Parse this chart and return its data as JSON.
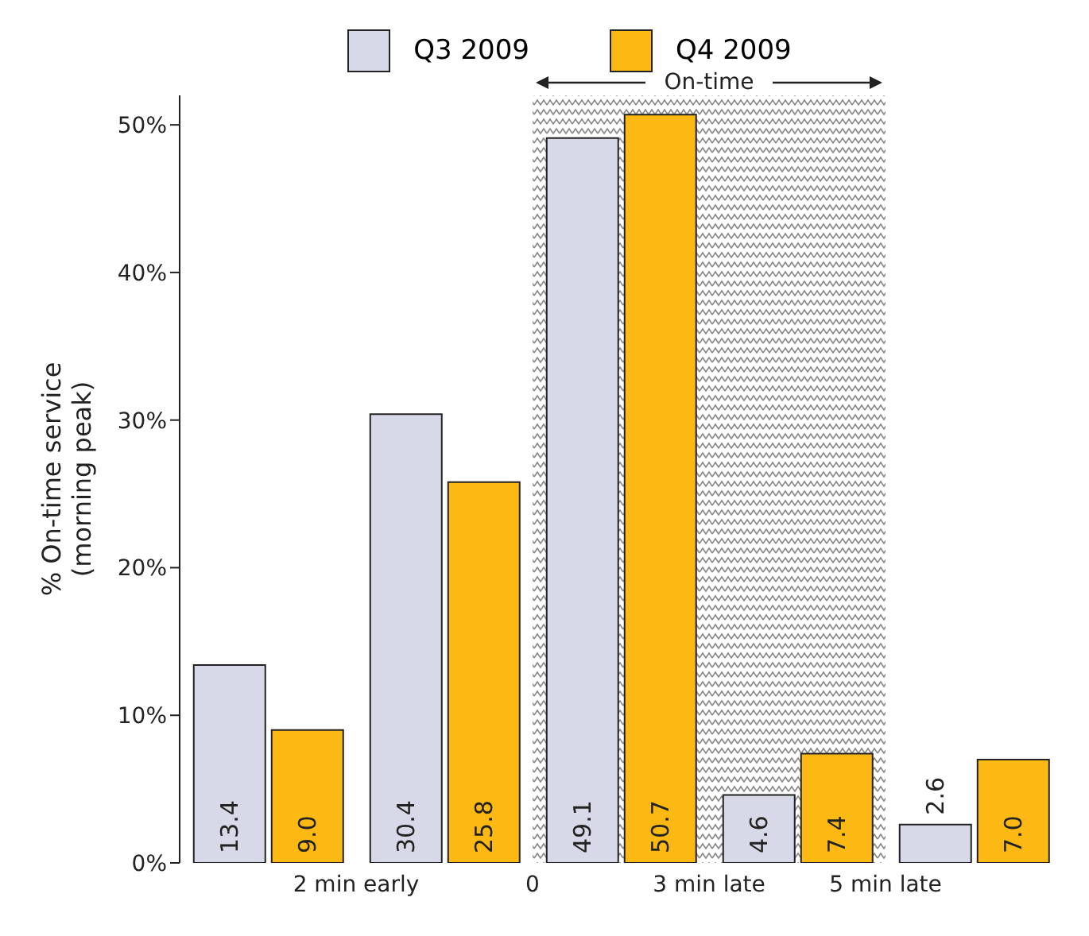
{
  "chart_data": {
    "type": "bar",
    "ylabel": "% On-time service\n(morning peak)",
    "categories": [
      null,
      null,
      null,
      null,
      null
    ],
    "annotations": [
      "2 min early",
      "0",
      "3 min late",
      "5 min late",
      "On-time"
    ],
    "ylim": [
      0,
      52
    ],
    "yticks": [
      {
        "value": 0,
        "label": "0%"
      },
      {
        "value": 10,
        "label": "10%"
      },
      {
        "value": 20,
        "label": "20%"
      },
      {
        "value": 30,
        "label": "30%"
      },
      {
        "value": 40,
        "label": "40%"
      },
      {
        "value": 50,
        "label": "50%"
      }
    ],
    "series": [
      {
        "name": "Q3 2009",
        "color": "#d7d9e8",
        "values": [
          13.4,
          30.4,
          49.1,
          4.6,
          2.6
        ],
        "value_labels": [
          "13.4",
          "30.4",
          "49.1",
          "4.6",
          "2.6"
        ]
      },
      {
        "name": "Q4 2009",
        "color": "#fdb913",
        "values": [
          9.0,
          25.8,
          50.7,
          7.4,
          7.0
        ],
        "value_labels": [
          "9.0",
          "25.8",
          "50.7",
          "7.4",
          "7.0"
        ]
      }
    ],
    "legend": "top"
  }
}
